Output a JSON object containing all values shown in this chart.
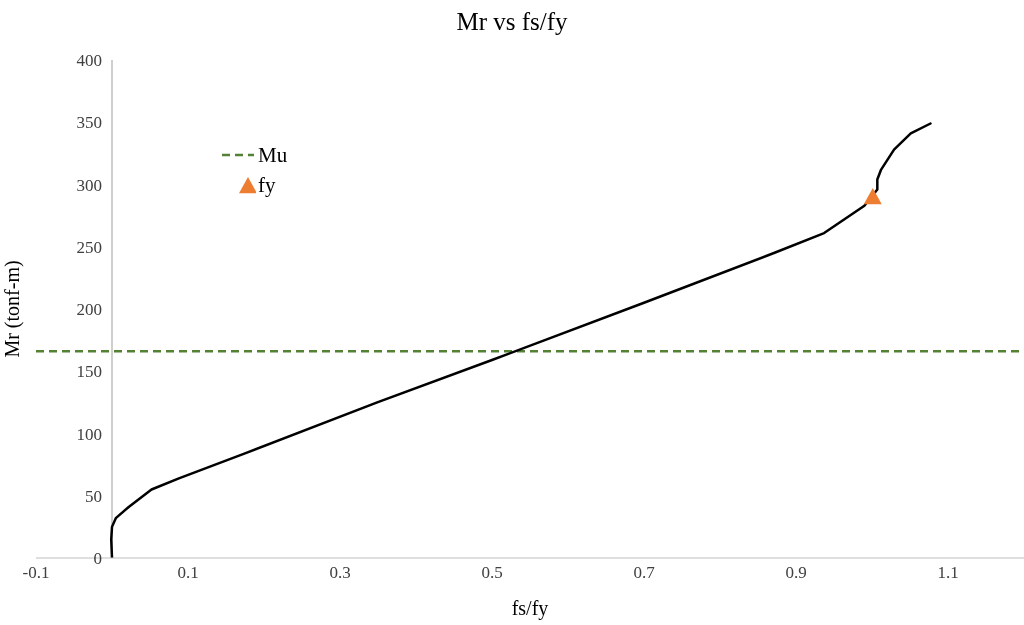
{
  "chart_data": {
    "type": "line",
    "title": "Mr vs fs/fy",
    "xlabel": "fs/fy",
    "ylabel": "Mr (tonf-m)",
    "xlim": [
      -0.1,
      1.2
    ],
    "xticks": [
      -0.1,
      0.1,
      0.3,
      0.5,
      0.7,
      0.9,
      1.1
    ],
    "ylim": [
      0,
      400
    ],
    "yticks": [
      0,
      50,
      100,
      150,
      200,
      250,
      300,
      350,
      400
    ],
    "grid": false,
    "legend": "top left",
    "series": [
      {
        "color": "#000000",
        "marker": "none",
        "line_style": "solid",
        "x": [
          0,
          -0.001,
          0.0,
          0.005,
          0.022,
          0.052,
          0.088,
          0.175,
          0.349,
          0.5,
          0.7,
          0.871,
          0.937,
          0.99,
          1.007,
          1.007,
          1.012,
          1.029,
          1.051,
          1.077
        ],
        "values": [
          0,
          15,
          25,
          32,
          41,
          55,
          64,
          84,
          125,
          159,
          205,
          245,
          261,
          283,
          296,
          304,
          312,
          328,
          341,
          349
        ]
      },
      {
        "type": "scatter",
        "name": "fy",
        "color": "#ed7d31",
        "marker": "triangle",
        "x": [
          1.001
        ],
        "values": [
          290
        ]
      }
    ],
    "ref_lines": [
      {
        "axis": "y",
        "value": 166,
        "label": "Mu",
        "color": "#548235",
        "line_style": "dashed"
      }
    ]
  }
}
